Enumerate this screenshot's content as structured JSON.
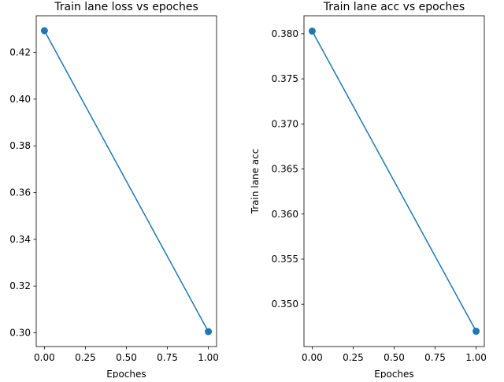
{
  "figure": {
    "background": "#ffffff",
    "series_color": "#1f77b4"
  },
  "chart_data": [
    {
      "type": "line",
      "title": "Train lane loss vs epoches",
      "xlabel": "Epoches",
      "ylabel": "",
      "x": [
        0,
        1
      ],
      "series": [
        {
          "values": [
            0.4293,
            0.3005
          ],
          "marker": "circle"
        }
      ],
      "xlim": [
        -0.05,
        1.05
      ],
      "ylim": [
        0.2941,
        0.4357
      ],
      "xticks": [
        0.0,
        0.25,
        0.5,
        0.75,
        1.0
      ],
      "xtick_labels": [
        "0.00",
        "0.25",
        "0.50",
        "0.75",
        "1.00"
      ],
      "yticks": [
        0.3,
        0.32,
        0.34,
        0.36,
        0.38,
        0.4,
        0.42
      ],
      "ytick_labels": [
        "0.30",
        "0.32",
        "0.34",
        "0.36",
        "0.38",
        "0.40",
        "0.42"
      ],
      "grid": false,
      "legend": false
    },
    {
      "type": "line",
      "title": "Train lane acc vs epoches",
      "xlabel": "Epoches",
      "ylabel": "Train lane acc",
      "x": [
        0,
        1
      ],
      "series": [
        {
          "values": [
            0.3803,
            0.347
          ],
          "marker": "circle"
        }
      ],
      "xlim": [
        -0.05,
        1.05
      ],
      "ylim": [
        0.3453,
        0.382
      ],
      "xticks": [
        0.0,
        0.25,
        0.5,
        0.75,
        1.0
      ],
      "xtick_labels": [
        "0.00",
        "0.25",
        "0.50",
        "0.75",
        "1.00"
      ],
      "yticks": [
        0.35,
        0.355,
        0.36,
        0.365,
        0.37,
        0.375,
        0.38
      ],
      "ytick_labels": [
        "0.350",
        "0.355",
        "0.360",
        "0.365",
        "0.370",
        "0.375",
        "0.380"
      ],
      "grid": false,
      "legend": false
    }
  ]
}
